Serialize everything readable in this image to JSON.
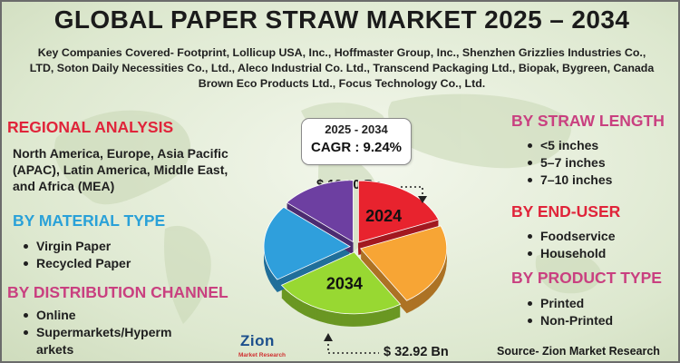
{
  "title": "GLOBAL PAPER STRAW MARKET 2025 – 2034",
  "companies_text": "Key Companies Covered- Footprint, Lollicup USA, Inc., Hoffmaster Group, Inc., Shenzhen Grizzlies Industries Co., LTD, Soton Daily Necessities Co., Ltd., Aleco Industrial Co. Ltd., Transcend Packaging Ltd., Biopak, Bygreen, Canada Brown Eco Products Ltd., Focus Technology Co., Ltd.",
  "regional": {
    "heading": "REGIONAL ANALYSIS",
    "text": "North America, Europe, Asia Pacific (APAC), Latin America, Middle East, and Africa (MEA)"
  },
  "material": {
    "heading": "BY MATERIAL TYPE",
    "items": [
      "Virgin Paper",
      "Recycled Paper"
    ]
  },
  "distribution": {
    "heading": "BY DISTRIBUTION CHANNEL",
    "items": [
      "Online",
      "Supermarkets/Hyperm arkets"
    ]
  },
  "straw_length": {
    "heading": "BY STRAW LENGTH",
    "items": [
      "<5 inches",
      "5–7 inches",
      "7–10 inches"
    ]
  },
  "end_user": {
    "heading": "BY END-USER",
    "items": [
      "Foodservice",
      "Household"
    ]
  },
  "product_type": {
    "heading": "BY PRODUCT TYPE",
    "items": [
      "Printed",
      "Non-Printed"
    ]
  },
  "cagr": {
    "period": "2025 - 2034",
    "text": "CAGR : 9.24%"
  },
  "source": "Source- Zion Market Research",
  "logo": {
    "word": "Zion",
    "sub": "Market Research"
  },
  "colors": {
    "red_heading": "#e0243a",
    "blue_heading": "#2aa1d8",
    "pink_heading": "#c94080"
  },
  "chart_data": {
    "type": "pie",
    "title": "",
    "value_labels": {
      "2024": "$ 13.60 Bn",
      "2034": "$ 32.92 Bn"
    },
    "slices": [
      {
        "label": "2024",
        "value": 0.19,
        "color": "#e8232e"
      },
      {
        "label": "",
        "value": 0.22,
        "color": "#f7a535"
      },
      {
        "label": "2034",
        "value": 0.25,
        "color": "#98d832"
      },
      {
        "label": "",
        "value": 0.2,
        "color": "#2f9fdc"
      },
      {
        "label": "",
        "value": 0.14,
        "color": "#6d3fa1"
      }
    ]
  }
}
